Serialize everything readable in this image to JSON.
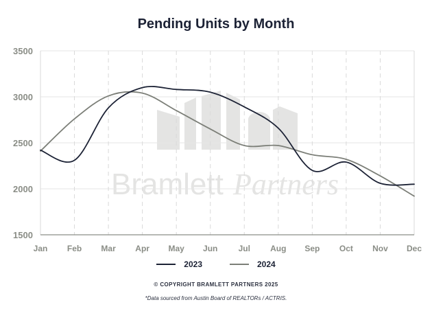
{
  "chart_data": {
    "type": "line",
    "title": "Pending Units by Month",
    "xlabel": "",
    "ylabel": "",
    "categories": [
      "Jan",
      "Feb",
      "Mar",
      "Apr",
      "May",
      "Jun",
      "Jul",
      "Aug",
      "Sep",
      "Oct",
      "Nov",
      "Dec"
    ],
    "ylim": [
      1500,
      3500
    ],
    "yticks": [
      1500,
      2000,
      2500,
      3000,
      3500
    ],
    "grid": true,
    "legend_position": "bottom",
    "series": [
      {
        "name": "2023",
        "color": "#1c2235",
        "values": [
          2420,
          2310,
          2880,
          3100,
          3080,
          3050,
          2890,
          2660,
          2200,
          2290,
          2060,
          2050
        ]
      },
      {
        "name": "2024",
        "color": "#7c7f78",
        "values": [
          2410,
          2760,
          3010,
          3040,
          2850,
          2650,
          2470,
          2470,
          2370,
          2320,
          2140,
          1920
        ]
      }
    ]
  },
  "watermark": {
    "text_a": "Bramlett",
    "text_b": "Partners"
  },
  "footer": {
    "copyright": "© COPYRIGHT BRAMLETT PARTNERS 2025",
    "source": "*Data sourced from Austin Board of REALTORs / ACTRIS."
  }
}
